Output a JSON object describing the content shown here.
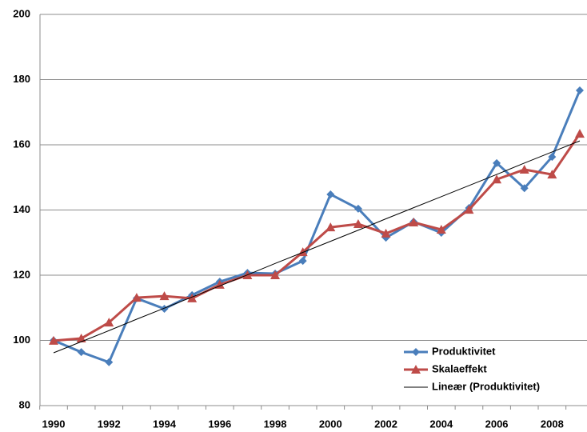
{
  "chart_data": {
    "type": "line",
    "categories": [
      "1990",
      null,
      "1992",
      null,
      "1994",
      null,
      "1996",
      null,
      "1998",
      null,
      "2000",
      null,
      "2002",
      null,
      "2004",
      null,
      "2006",
      null,
      "2008",
      null
    ],
    "series": [
      {
        "name": "Produktivitet",
        "color": "#4a7ebb",
        "marker": "diamond",
        "values": [
          100,
          96.4,
          93.3,
          112.9,
          109.7,
          113.9,
          118,
          120.7,
          120.5,
          124.4,
          144.8,
          140.4,
          131.5,
          136.4,
          133,
          140.6,
          154.4,
          146.7,
          156.3,
          176.7
        ]
      },
      {
        "name": "Skalaeffekt",
        "color": "#be4b48",
        "marker": "triangle",
        "values": [
          99.9,
          100.6,
          105.5,
          113.1,
          113.6,
          112.9,
          117.1,
          120,
          120,
          127.1,
          134.7,
          135.7,
          132.8,
          136.2,
          134,
          140.1,
          149.4,
          152.4,
          150.9,
          163.4
        ]
      },
      {
        "name": "Lineær (Produktivitet)",
        "color": "#000000",
        "marker": "none",
        "values": [
          96.2,
          99.6,
          103.0,
          106.5,
          109.9,
          113.3,
          116.7,
          120.1,
          123.6,
          127.0,
          130.4,
          133.8,
          137.3,
          140.7,
          144.1,
          147.5,
          150.9,
          154.4,
          157.8,
          161.2
        ]
      }
    ],
    "ylim": [
      80,
      200
    ],
    "yticks": [
      80,
      100,
      120,
      140,
      160,
      180,
      200
    ],
    "grid": true,
    "legend": "lower right"
  }
}
